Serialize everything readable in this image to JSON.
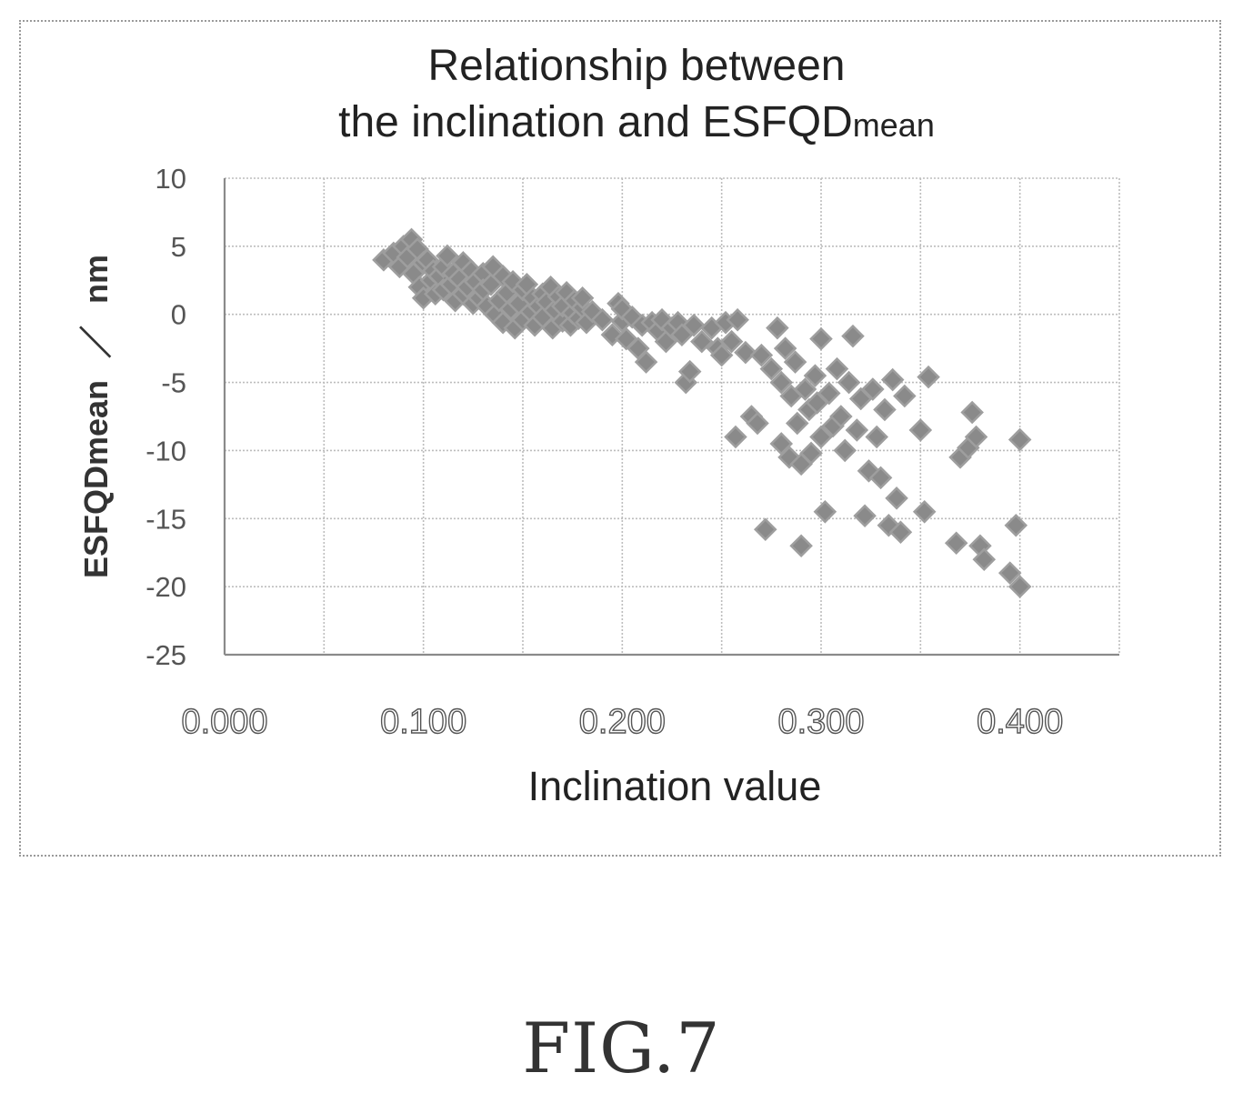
{
  "figure": {
    "label": "FIG.7"
  },
  "chart_data": {
    "type": "scatter",
    "title_line1": "Relationship between",
    "title_line2_main": "the inclination and ESFQD",
    "title_line2_sub": "mean",
    "xlabel": "Inclination value",
    "ylabel_main": "ESFQDmean",
    "ylabel_sep": "／",
    "ylabel_unit": "nm",
    "xlim": [
      0.0,
      0.45
    ],
    "ylim": [
      -25,
      10
    ],
    "xticks": [
      0.0,
      0.1,
      0.2,
      0.3,
      0.4
    ],
    "xtick_labels": [
      "0.000",
      "0.100",
      "0.200",
      "0.300",
      "0.400"
    ],
    "xgrid": [
      0.0,
      0.05,
      0.1,
      0.15,
      0.2,
      0.25,
      0.3,
      0.35,
      0.4,
      0.45
    ],
    "yticks": [
      10,
      5,
      0,
      -5,
      -10,
      -15,
      -20,
      -25
    ],
    "ytick_labels": [
      "10",
      "5",
      "0",
      "-5",
      "-10",
      "-15",
      "-20",
      "-25"
    ],
    "grid": true,
    "marker": "diamond",
    "point_color": "#8a8a8a",
    "points": [
      [
        0.08,
        4.0
      ],
      [
        0.085,
        4.5
      ],
      [
        0.088,
        3.5
      ],
      [
        0.09,
        5.0
      ],
      [
        0.092,
        4.2
      ],
      [
        0.094,
        5.5
      ],
      [
        0.095,
        3.0
      ],
      [
        0.097,
        4.8
      ],
      [
        0.098,
        2.0
      ],
      [
        0.1,
        1.2
      ],
      [
        0.1,
        3.8
      ],
      [
        0.102,
        4.0
      ],
      [
        0.104,
        2.5
      ],
      [
        0.105,
        3.2
      ],
      [
        0.106,
        1.5
      ],
      [
        0.108,
        2.8
      ],
      [
        0.11,
        3.5
      ],
      [
        0.11,
        1.8
      ],
      [
        0.112,
        4.3
      ],
      [
        0.114,
        2.2
      ],
      [
        0.115,
        3.0
      ],
      [
        0.116,
        1.0
      ],
      [
        0.118,
        2.6
      ],
      [
        0.12,
        3.8
      ],
      [
        0.12,
        1.5
      ],
      [
        0.122,
        2.0
      ],
      [
        0.124,
        3.2
      ],
      [
        0.125,
        0.8
      ],
      [
        0.126,
        2.4
      ],
      [
        0.128,
        1.2
      ],
      [
        0.13,
        3.0
      ],
      [
        0.13,
        1.8
      ],
      [
        0.132,
        0.6
      ],
      [
        0.134,
        2.2
      ],
      [
        0.135,
        3.5
      ],
      [
        0.136,
        0.0
      ],
      [
        0.138,
        1.0
      ],
      [
        0.14,
        2.8
      ],
      [
        0.14,
        -0.6
      ],
      [
        0.142,
        1.6
      ],
      [
        0.144,
        0.4
      ],
      [
        0.145,
        2.4
      ],
      [
        0.146,
        -1.0
      ],
      [
        0.148,
        0.8
      ],
      [
        0.15,
        1.8
      ],
      [
        0.15,
        -0.4
      ],
      [
        0.152,
        2.2
      ],
      [
        0.154,
        0.2
      ],
      [
        0.155,
        1.2
      ],
      [
        0.156,
        -0.8
      ],
      [
        0.158,
        0.6
      ],
      [
        0.16,
        1.5
      ],
      [
        0.16,
        -0.2
      ],
      [
        0.162,
        0.9
      ],
      [
        0.164,
        2.0
      ],
      [
        0.165,
        -1.0
      ],
      [
        0.166,
        0.3
      ],
      [
        0.168,
        1.3
      ],
      [
        0.17,
        -0.5
      ],
      [
        0.17,
        0.6
      ],
      [
        0.172,
        1.6
      ],
      [
        0.174,
        -0.8
      ],
      [
        0.175,
        0.1
      ],
      [
        0.176,
        1.0
      ],
      [
        0.178,
        -0.3
      ],
      [
        0.18,
        0.5
      ],
      [
        0.18,
        1.2
      ],
      [
        0.182,
        -0.6
      ],
      [
        0.185,
        0.2
      ],
      [
        0.19,
        -0.4
      ],
      [
        0.195,
        -1.5
      ],
      [
        0.198,
        0.8
      ],
      [
        0.2,
        -0.5
      ],
      [
        0.2,
        0.4
      ],
      [
        0.202,
        -1.8
      ],
      [
        0.205,
        -0.2
      ],
      [
        0.208,
        -2.5
      ],
      [
        0.21,
        -0.8
      ],
      [
        0.212,
        -3.5
      ],
      [
        0.215,
        -0.6
      ],
      [
        0.218,
        -1.2
      ],
      [
        0.22,
        -0.4
      ],
      [
        0.222,
        -2.0
      ],
      [
        0.225,
        -1.0
      ],
      [
        0.228,
        -0.6
      ],
      [
        0.23,
        -1.5
      ],
      [
        0.232,
        -5.0
      ],
      [
        0.234,
        -4.2
      ],
      [
        0.236,
        -0.8
      ],
      [
        0.24,
        -2.0
      ],
      [
        0.245,
        -1.0
      ],
      [
        0.248,
        -2.5
      ],
      [
        0.25,
        -3.0
      ],
      [
        0.252,
        -0.6
      ],
      [
        0.255,
        -2.0
      ],
      [
        0.257,
        -9.0
      ],
      [
        0.258,
        -0.4
      ],
      [
        0.262,
        -2.8
      ],
      [
        0.265,
        -7.5
      ],
      [
        0.268,
        -8.0
      ],
      [
        0.27,
        -3.0
      ],
      [
        0.272,
        -15.8
      ],
      [
        0.275,
        -4.0
      ],
      [
        0.278,
        -1.0
      ],
      [
        0.28,
        -5.0
      ],
      [
        0.28,
        -9.5
      ],
      [
        0.282,
        -2.5
      ],
      [
        0.284,
        -10.5
      ],
      [
        0.285,
        -6.0
      ],
      [
        0.287,
        -3.5
      ],
      [
        0.288,
        -8.0
      ],
      [
        0.29,
        -17.0
      ],
      [
        0.29,
        -11.0
      ],
      [
        0.292,
        -5.5
      ],
      [
        0.294,
        -7.0
      ],
      [
        0.295,
        -10.2
      ],
      [
        0.297,
        -4.5
      ],
      [
        0.298,
        -6.5
      ],
      [
        0.3,
        -1.8
      ],
      [
        0.3,
        -9.0
      ],
      [
        0.302,
        -14.5
      ],
      [
        0.304,
        -5.8
      ],
      [
        0.306,
        -8.2
      ],
      [
        0.308,
        -4.0
      ],
      [
        0.31,
        -7.5
      ],
      [
        0.312,
        -10.0
      ],
      [
        0.314,
        -5.0
      ],
      [
        0.316,
        -1.6
      ],
      [
        0.318,
        -8.5
      ],
      [
        0.32,
        -6.2
      ],
      [
        0.322,
        -14.8
      ],
      [
        0.324,
        -11.5
      ],
      [
        0.326,
        -5.5
      ],
      [
        0.328,
        -9.0
      ],
      [
        0.33,
        -12.0
      ],
      [
        0.332,
        -7.0
      ],
      [
        0.334,
        -15.5
      ],
      [
        0.336,
        -4.8
      ],
      [
        0.338,
        -13.5
      ],
      [
        0.34,
        -16.0
      ],
      [
        0.342,
        -6.0
      ],
      [
        0.35,
        -8.5
      ],
      [
        0.352,
        -14.5
      ],
      [
        0.354,
        -4.6
      ],
      [
        0.368,
        -16.8
      ],
      [
        0.37,
        -10.5
      ],
      [
        0.374,
        -9.8
      ],
      [
        0.376,
        -7.2
      ],
      [
        0.378,
        -9.0
      ],
      [
        0.38,
        -17.0
      ],
      [
        0.382,
        -18.0
      ],
      [
        0.395,
        -19.0
      ],
      [
        0.398,
        -15.5
      ],
      [
        0.4,
        -20.0
      ],
      [
        0.4,
        -9.2
      ]
    ]
  }
}
